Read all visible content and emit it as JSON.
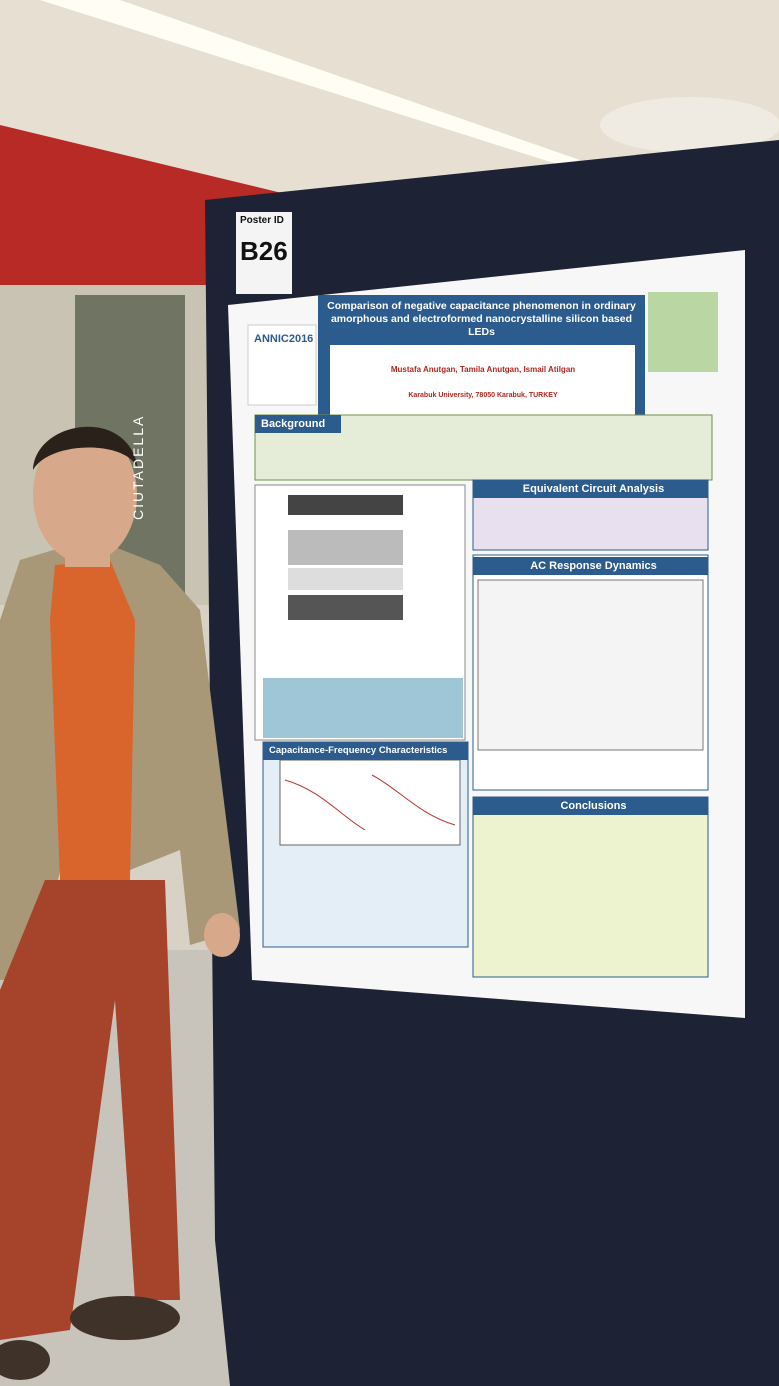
{
  "poster_id_label": "Poster ID",
  "poster_id": "B26",
  "conference": "ANNIC2016",
  "title": "Comparison of negative capacitance phenomenon in ordinary amorphous and electroformed nanocrystalline silicon based LEDs",
  "authors": "Mustafa Anutgan, Tamila Anutgan, Ismail Atilgan",
  "affiliation": "Karabuk University, 78050 Karabuk, TURKEY",
  "sections": [
    "Background",
    "Equivalent Circuit Analysis",
    "AC Response Dynamics",
    "Capacitance-Frequency Characteristics",
    "Conclusions"
  ],
  "wall_sign": "CIUTADELLA"
}
